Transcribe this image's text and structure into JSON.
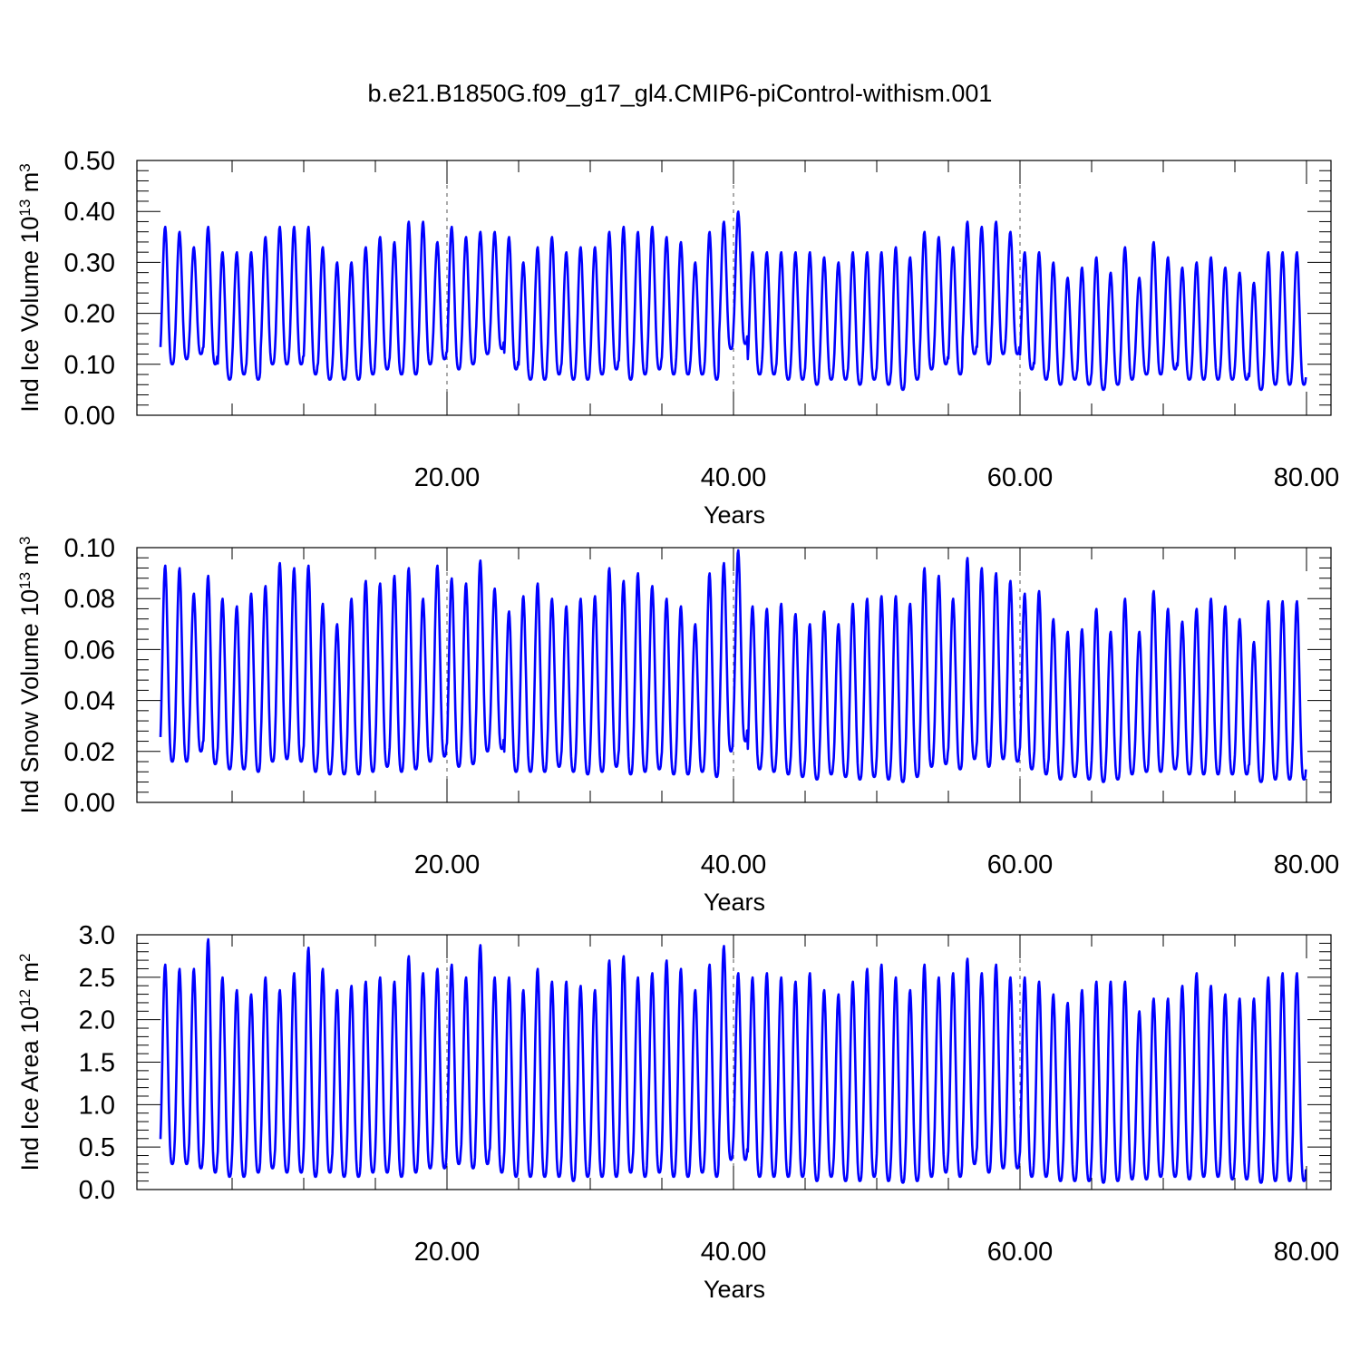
{
  "figure": {
    "title": "b.e21.B1850G.f09_g17_gl4.CMIP6-piControl-withism.001"
  },
  "chart_data": [
    {
      "type": "line",
      "title": "b.e21.B1850G.f09_g17_gl4.CMIP6-piControl-withism.001",
      "ylabel_main": "Ind Ice Volume 10",
      "ylabel_exp": "13",
      "ylabel_unit": " m",
      "ylabel_unit_exp": "3",
      "xlabel": "Years",
      "xlim": [
        0.0,
        80.0
      ],
      "ylim": [
        0.0,
        0.5
      ],
      "yticks": [
        0.0,
        0.1,
        0.2,
        0.3,
        0.4,
        0.5
      ],
      "ytick_labels": [
        "0.00",
        "0.10",
        "0.20",
        "0.30",
        "0.40",
        "0.50"
      ],
      "xticks": [
        20,
        40,
        60,
        80
      ],
      "xtick_labels": [
        "20.00",
        "40.00",
        "60.00",
        "80.00"
      ],
      "series_color": "#0000ff",
      "cycles_per_year": 1,
      "year_max": [
        0.37,
        0.36,
        0.33,
        0.37,
        0.32,
        0.32,
        0.32,
        0.35,
        0.37,
        0.37,
        0.37,
        0.33,
        0.3,
        0.3,
        0.33,
        0.35,
        0.34,
        0.38,
        0.38,
        0.34,
        0.37,
        0.35,
        0.36,
        0.36,
        0.35,
        0.3,
        0.33,
        0.35,
        0.32,
        0.33,
        0.33,
        0.36,
        0.37,
        0.36,
        0.37,
        0.35,
        0.34,
        0.3,
        0.36,
        0.38,
        0.4,
        0.32,
        0.32,
        0.32,
        0.32,
        0.32,
        0.31,
        0.3,
        0.32,
        0.32,
        0.32,
        0.33,
        0.31,
        0.36,
        0.35,
        0.33,
        0.38,
        0.37,
        0.38,
        0.36,
        0.32,
        0.32,
        0.3,
        0.27,
        0.29,
        0.31,
        0.28,
        0.33,
        0.27,
        0.34,
        0.31,
        0.29,
        0.3,
        0.31,
        0.29,
        0.28,
        0.26,
        0.32,
        0.32,
        0.32
      ],
      "year_min": [
        0.1,
        0.11,
        0.12,
        0.1,
        0.07,
        0.08,
        0.07,
        0.1,
        0.1,
        0.1,
        0.08,
        0.07,
        0.07,
        0.07,
        0.08,
        0.09,
        0.08,
        0.08,
        0.1,
        0.11,
        0.09,
        0.1,
        0.12,
        0.13,
        0.09,
        0.07,
        0.07,
        0.08,
        0.07,
        0.07,
        0.08,
        0.09,
        0.07,
        0.08,
        0.09,
        0.08,
        0.08,
        0.08,
        0.07,
        0.13,
        0.14,
        0.08,
        0.08,
        0.07,
        0.07,
        0.06,
        0.07,
        0.07,
        0.06,
        0.07,
        0.06,
        0.05,
        0.07,
        0.09,
        0.1,
        0.08,
        0.12,
        0.1,
        0.12,
        0.12,
        0.09,
        0.07,
        0.06,
        0.07,
        0.06,
        0.05,
        0.06,
        0.07,
        0.08,
        0.08,
        0.09,
        0.07,
        0.07,
        0.07,
        0.07,
        0.07,
        0.05,
        0.06,
        0.06,
        0.06
      ]
    },
    {
      "type": "line",
      "ylabel_main": "Ind Snow Volume 10",
      "ylabel_exp": "13",
      "ylabel_unit": " m",
      "ylabel_unit_exp": "3",
      "xlabel": "Years",
      "xlim": [
        0.0,
        80.0
      ],
      "ylim": [
        0.0,
        0.1
      ],
      "yticks": [
        0.0,
        0.02,
        0.04,
        0.06,
        0.08,
        0.1
      ],
      "ytick_labels": [
        "0.00",
        "0.02",
        "0.04",
        "0.06",
        "0.08",
        "0.10"
      ],
      "xticks": [
        20,
        40,
        60,
        80
      ],
      "xtick_labels": [
        "20.00",
        "40.00",
        "60.00",
        "80.00"
      ],
      "series_color": "#0000ff",
      "cycles_per_year": 1,
      "year_max": [
        0.093,
        0.092,
        0.082,
        0.089,
        0.08,
        0.077,
        0.082,
        0.085,
        0.094,
        0.092,
        0.093,
        0.078,
        0.07,
        0.08,
        0.087,
        0.086,
        0.089,
        0.092,
        0.08,
        0.093,
        0.088,
        0.086,
        0.095,
        0.084,
        0.075,
        0.081,
        0.086,
        0.08,
        0.077,
        0.08,
        0.081,
        0.092,
        0.087,
        0.09,
        0.085,
        0.08,
        0.077,
        0.07,
        0.09,
        0.094,
        0.099,
        0.077,
        0.076,
        0.078,
        0.074,
        0.07,
        0.075,
        0.07,
        0.078,
        0.08,
        0.081,
        0.081,
        0.078,
        0.092,
        0.089,
        0.08,
        0.096,
        0.092,
        0.09,
        0.087,
        0.082,
        0.083,
        0.072,
        0.067,
        0.068,
        0.076,
        0.067,
        0.08,
        0.067,
        0.083,
        0.076,
        0.071,
        0.076,
        0.08,
        0.077,
        0.072,
        0.063,
        0.079,
        0.079,
        0.079
      ],
      "year_min": [
        0.016,
        0.016,
        0.02,
        0.015,
        0.013,
        0.013,
        0.012,
        0.016,
        0.017,
        0.016,
        0.012,
        0.011,
        0.011,
        0.011,
        0.012,
        0.014,
        0.012,
        0.013,
        0.016,
        0.018,
        0.014,
        0.015,
        0.02,
        0.021,
        0.012,
        0.012,
        0.012,
        0.014,
        0.012,
        0.011,
        0.012,
        0.014,
        0.011,
        0.012,
        0.013,
        0.011,
        0.011,
        0.012,
        0.01,
        0.02,
        0.024,
        0.013,
        0.012,
        0.011,
        0.01,
        0.009,
        0.011,
        0.01,
        0.009,
        0.01,
        0.009,
        0.008,
        0.01,
        0.014,
        0.015,
        0.013,
        0.017,
        0.014,
        0.017,
        0.016,
        0.013,
        0.011,
        0.009,
        0.01,
        0.009,
        0.008,
        0.009,
        0.011,
        0.012,
        0.012,
        0.013,
        0.011,
        0.011,
        0.011,
        0.011,
        0.011,
        0.008,
        0.009,
        0.009,
        0.009
      ]
    },
    {
      "type": "line",
      "ylabel_main": "Ind Ice Area 10",
      "ylabel_exp": "12",
      "ylabel_unit": " m",
      "ylabel_unit_exp": "2",
      "xlabel": "Years",
      "xlim": [
        0.0,
        80.0
      ],
      "ylim": [
        0.0,
        3.0
      ],
      "yticks": [
        0.0,
        0.5,
        1.0,
        1.5,
        2.0,
        2.5,
        3.0
      ],
      "ytick_labels": [
        "0.0",
        "0.5",
        "1.0",
        "1.5",
        "2.0",
        "2.5",
        "3.0"
      ],
      "xticks": [
        20,
        40,
        60,
        80
      ],
      "xtick_labels": [
        "20.00",
        "40.00",
        "60.00",
        "80.00"
      ],
      "series_color": "#0000ff",
      "cycles_per_year": 1,
      "year_max": [
        2.65,
        2.6,
        2.6,
        2.95,
        2.5,
        2.35,
        2.3,
        2.5,
        2.35,
        2.55,
        2.85,
        2.6,
        2.35,
        2.4,
        2.45,
        2.5,
        2.45,
        2.75,
        2.55,
        2.6,
        2.65,
        2.5,
        2.88,
        2.5,
        2.5,
        2.35,
        2.6,
        2.45,
        2.45,
        2.4,
        2.35,
        2.7,
        2.75,
        2.5,
        2.55,
        2.7,
        2.6,
        2.35,
        2.65,
        2.87,
        2.55,
        2.5,
        2.55,
        2.5,
        2.45,
        2.55,
        2.35,
        2.3,
        2.45,
        2.6,
        2.65,
        2.5,
        2.35,
        2.65,
        2.5,
        2.55,
        2.72,
        2.55,
        2.65,
        2.5,
        2.5,
        2.45,
        2.3,
        2.2,
        2.35,
        2.45,
        2.45,
        2.45,
        2.1,
        2.25,
        2.25,
        2.4,
        2.55,
        2.4,
        2.3,
        2.25,
        2.25,
        2.5,
        2.55,
        2.55
      ],
      "year_min": [
        0.3,
        0.3,
        0.25,
        0.2,
        0.15,
        0.15,
        0.2,
        0.25,
        0.2,
        0.2,
        0.15,
        0.2,
        0.15,
        0.15,
        0.2,
        0.2,
        0.15,
        0.2,
        0.25,
        0.25,
        0.3,
        0.25,
        0.3,
        0.2,
        0.15,
        0.15,
        0.15,
        0.15,
        0.1,
        0.15,
        0.15,
        0.15,
        0.2,
        0.15,
        0.2,
        0.15,
        0.15,
        0.2,
        0.15,
        0.35,
        0.35,
        0.15,
        0.15,
        0.15,
        0.15,
        0.1,
        0.15,
        0.1,
        0.1,
        0.15,
        0.1,
        0.08,
        0.1,
        0.15,
        0.2,
        0.15,
        0.3,
        0.2,
        0.25,
        0.25,
        0.15,
        0.15,
        0.1,
        0.1,
        0.1,
        0.08,
        0.1,
        0.12,
        0.12,
        0.15,
        0.15,
        0.12,
        0.15,
        0.15,
        0.12,
        0.12,
        0.08,
        0.1,
        0.1,
        0.1
      ]
    }
  ]
}
